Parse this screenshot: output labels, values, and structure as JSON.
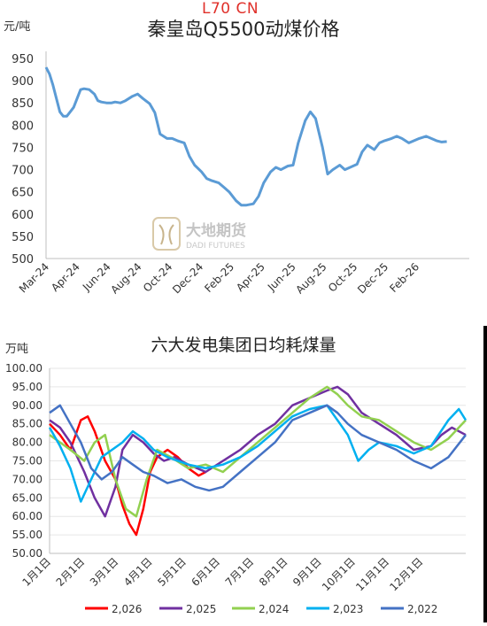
{
  "watermark_top": "L70 CN",
  "logo": {
    "cn": "大地期货",
    "en": "DADI FUTURES"
  },
  "chart_data": [
    {
      "type": "line",
      "title": "秦皇岛Q5500动煤价格",
      "unit": "元/吨",
      "ylim": [
        500,
        950
      ],
      "yticks": [
        "500",
        "550",
        "600",
        "650",
        "700",
        "750",
        "800",
        "850",
        "900",
        "950"
      ],
      "xticks": [
        "Mar-24",
        "Apr-24",
        "Jun-24",
        "Aug-24",
        "Oct-24",
        "Dec-24",
        "Feb-25",
        "Apr-25",
        "Jun-25",
        "Aug-25",
        "Oct-25",
        "Dec-25",
        "Feb-26"
      ],
      "xlim": [
        0,
        24.5
      ],
      "color": "#5b9bd5",
      "series": [
        {
          "x": [
            0,
            0.2,
            0.4,
            0.6,
            0.8,
            1.0,
            1.2,
            1.4,
            1.6,
            1.8,
            2.0,
            2.2,
            2.5,
            2.8,
            3.0,
            3.2,
            3.5,
            3.8,
            4.0,
            4.3,
            4.6,
            5.0,
            5.3,
            5.6,
            6.0,
            6.3,
            6.6,
            7.0,
            7.3,
            7.6,
            8.0,
            8.3,
            8.6,
            9.0,
            9.3,
            9.6,
            10.0,
            10.3,
            10.6,
            11.0,
            11.3,
            11.6,
            12.0,
            12.3,
            12.6,
            13.0,
            13.3,
            13.6,
            14.0,
            14.3,
            14.6,
            15.0,
            15.3,
            15.6,
            16.0,
            16.3,
            16.6,
            17.0,
            17.3,
            17.6,
            18.0,
            18.3,
            18.6,
            19.0,
            19.3,
            19.6,
            20.0,
            20.3,
            20.6,
            21.0,
            21.3,
            21.6,
            22.0,
            22.3,
            22.6,
            22.9,
            23.2
          ],
          "y": [
            930,
            915,
            890,
            860,
            830,
            820,
            820,
            830,
            840,
            860,
            880,
            882,
            880,
            870,
            855,
            852,
            850,
            850,
            852,
            850,
            855,
            865,
            870,
            860,
            848,
            828,
            780,
            770,
            770,
            765,
            760,
            730,
            710,
            695,
            680,
            675,
            670,
            660,
            650,
            630,
            620,
            620,
            623,
            640,
            670,
            695,
            705,
            700,
            708,
            710,
            760,
            810,
            830,
            815,
            750,
            690,
            700,
            710,
            700,
            705,
            712,
            740,
            755,
            745,
            760,
            765,
            770,
            775,
            770,
            760,
            765,
            770,
            775,
            770,
            765,
            762,
            763
          ]
        }
      ]
    },
    {
      "type": "line",
      "title": "六大发电集团日均耗煤量",
      "unit": "万吨",
      "ylim": [
        50,
        100
      ],
      "yticks": [
        "50.00",
        "55.00",
        "60.00",
        "65.00",
        "70.00",
        "75.00",
        "80.00",
        "85.00",
        "90.00",
        "95.00",
        "100.00"
      ],
      "xticks": [
        "1月1日",
        "2月1日",
        "3月1日",
        "4月1日",
        "5月1日",
        "6月1日",
        "7月1日",
        "8月1日",
        "9月1日",
        "10月1日",
        "11月1日",
        "12月1日"
      ],
      "xlim": [
        0,
        12
      ],
      "legend_position": "bottom",
      "series": [
        {
          "name": "2,026",
          "color": "#ff0000",
          "x": [
            0,
            0.3,
            0.6,
            0.9,
            1.1,
            1.3,
            1.6,
            1.9,
            2.1,
            2.3,
            2.5,
            2.7,
            2.9,
            3.1,
            3.4,
            3.7,
            4.0,
            4.3,
            4.5
          ],
          "y": [
            85,
            82,
            78,
            86,
            87,
            83,
            75,
            70,
            63,
            58,
            55,
            62,
            72,
            76,
            78,
            76,
            73,
            71,
            72
          ]
        },
        {
          "name": "2,025",
          "color": "#7030a0",
          "x": [
            0,
            0.3,
            0.6,
            1.0,
            1.3,
            1.6,
            1.9,
            2.1,
            2.4,
            2.7,
            3.0,
            3.3,
            3.6,
            4.0,
            4.5,
            5.0,
            5.5,
            6.0,
            6.5,
            7.0,
            7.5,
            8.0,
            8.3,
            8.6,
            9.0,
            9.5,
            10.0,
            10.5,
            11.0,
            11.3,
            11.6,
            12.0
          ],
          "y": [
            86,
            84,
            80,
            72,
            65,
            60,
            68,
            78,
            82,
            80,
            77,
            75,
            76,
            74,
            72,
            75,
            78,
            82,
            85,
            90,
            92,
            94,
            95,
            93,
            88,
            85,
            82,
            78,
            79,
            82,
            84,
            82
          ]
        },
        {
          "name": "2,024",
          "color": "#92d050",
          "x": [
            0,
            0.3,
            0.6,
            1.0,
            1.3,
            1.6,
            1.9,
            2.2,
            2.5,
            2.8,
            3.1,
            3.5,
            4.0,
            4.5,
            5.0,
            5.5,
            6.0,
            6.5,
            7.0,
            7.5,
            8.0,
            8.3,
            8.6,
            9.0,
            9.5,
            10.0,
            10.5,
            11.0,
            11.5,
            12.0
          ],
          "y": [
            82,
            80,
            78,
            75,
            80,
            82,
            70,
            62,
            60,
            70,
            78,
            76,
            73,
            74,
            72,
            76,
            80,
            84,
            88,
            92,
            95,
            93,
            90,
            87,
            86,
            83,
            80,
            78,
            81,
            86
          ]
        },
        {
          "name": "2,023",
          "color": "#00b0f0",
          "x": [
            0,
            0.3,
            0.6,
            0.9,
            1.2,
            1.5,
            1.8,
            2.1,
            2.4,
            2.7,
            3.0,
            3.4,
            4.0,
            4.5,
            5.0,
            5.5,
            6.0,
            6.5,
            7.0,
            7.5,
            8.0,
            8.3,
            8.6,
            8.9,
            9.2,
            9.5,
            10.0,
            10.5,
            11.0,
            11.5,
            11.8,
            12.0
          ],
          "y": [
            84,
            79,
            73,
            64,
            70,
            76,
            78,
            80,
            83,
            81,
            78,
            76,
            74,
            73,
            74,
            76,
            79,
            83,
            87,
            89,
            90,
            86,
            82,
            75,
            78,
            80,
            79,
            77,
            79,
            86,
            89,
            86
          ]
        },
        {
          "name": "2,022",
          "color": "#4472c4",
          "x": [
            0,
            0.3,
            0.6,
            0.9,
            1.2,
            1.5,
            1.8,
            2.1,
            2.4,
            2.7,
            3.0,
            3.4,
            3.8,
            4.2,
            4.6,
            5.0,
            5.5,
            6.0,
            6.5,
            7.0,
            7.5,
            8.0,
            8.3,
            8.6,
            9.0,
            9.5,
            10.0,
            10.5,
            11.0,
            11.5,
            12.0
          ],
          "y": [
            88,
            90,
            85,
            80,
            73,
            70,
            72,
            76,
            74,
            72,
            71,
            69,
            70,
            68,
            67,
            68,
            72,
            76,
            80,
            86,
            88,
            90,
            88,
            85,
            82,
            80,
            78,
            75,
            73,
            76,
            82
          ]
        }
      ]
    }
  ]
}
